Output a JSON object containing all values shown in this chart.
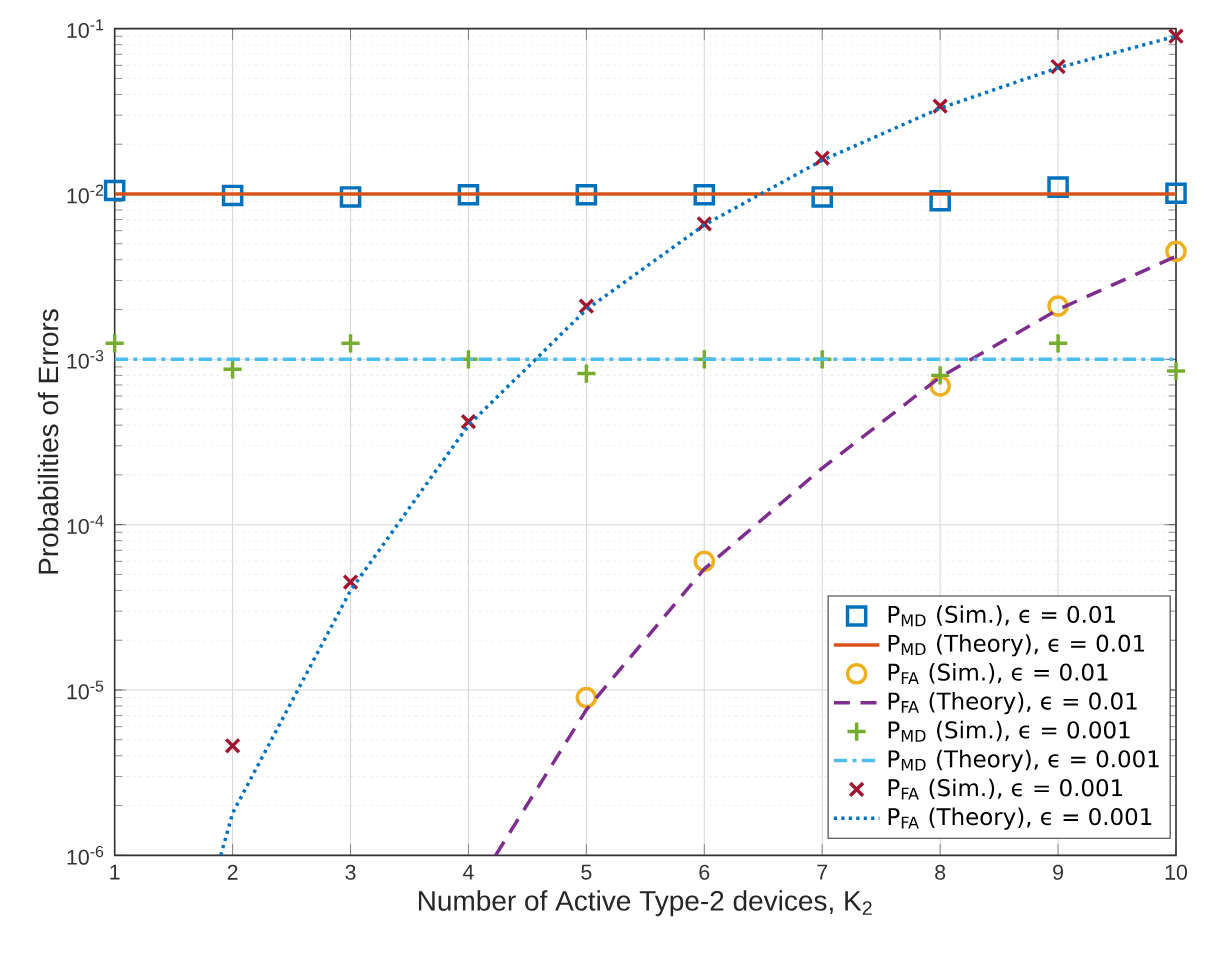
{
  "chart_data": {
    "type": "line",
    "xlabel": "Number of Active Type-2 devices, K$_{2}$",
    "ylabel": "Probabilities of Errors",
    "xlim": [
      1,
      10
    ],
    "ylim": [
      1e-06,
      0.1
    ],
    "log": "y",
    "grid": true,
    "legend": "bottom right",
    "xticks": [
      1,
      2,
      3,
      4,
      5,
      6,
      7,
      8,
      9,
      10
    ],
    "yticks": [
      {
        "value": 1e-06,
        "label": "10$^{-6}$"
      },
      {
        "value": 1e-05,
        "label": "10$^{-5}$"
      },
      {
        "value": 0.0001,
        "label": "10$^{-4}$"
      },
      {
        "value": 0.001,
        "label": "10$^{-3}$"
      },
      {
        "value": 0.01,
        "label": "10$^{-2}$"
      },
      {
        "value": 0.1,
        "label": "10$^{-1}$"
      }
    ],
    "series": [
      {
        "name": "P$_{MD}$ (Sim.), ϵ = 0.01",
        "type": "scatter",
        "marker": "square",
        "color": "#0072bd",
        "x": [
          1,
          2,
          3,
          4,
          5,
          6,
          7,
          8,
          9,
          10
        ],
        "values": [
          0.0105,
          0.0098,
          0.0096,
          0.0099,
          0.0099,
          0.0099,
          0.0096,
          0.0091,
          0.011,
          0.0101
        ]
      },
      {
        "name": "P$_{MD}$ (Theory), ϵ = 0.01",
        "line_style": "solid",
        "color": "#d95319",
        "x": [
          1,
          10
        ],
        "values": [
          0.01,
          0.01
        ]
      },
      {
        "name": "P$_{FA}$ (Sim.), ϵ = 0.01",
        "type": "scatter",
        "marker": "circle",
        "color": "#edb120",
        "x": [
          5,
          6,
          7,
          8,
          9,
          10
        ],
        "values": [
          9e-06,
          6e-05,
          null,
          0.00069,
          0.0021,
          0.0045
        ]
      },
      {
        "name": "P$_{FA}$ (Theory), ϵ = 0.01",
        "line_style": "dashed",
        "color": "#7e2f8e",
        "x": [
          4.23,
          5,
          6,
          7,
          8,
          9,
          10
        ],
        "values": [
          1e-06,
          7.6e-06,
          5.4e-05,
          0.00022,
          0.00078,
          0.002,
          0.0042
        ]
      },
      {
        "name": "P$_{MD}$ (Sim.), ϵ = 0.001",
        "type": "scatter",
        "marker": "plus",
        "color": "#77ac30",
        "x": [
          1,
          2,
          3,
          4,
          5,
          6,
          7,
          8,
          9,
          10
        ],
        "values": [
          0.00125,
          0.00087,
          0.00125,
          0.001,
          0.00082,
          0.001,
          0.001,
          0.0008,
          0.00125,
          0.00085
        ]
      },
      {
        "name": "P$_{MD}$ (Theory), ϵ = 0.001",
        "line_style": "dashdot",
        "color": "#4dbeee",
        "x": [
          1,
          10
        ],
        "values": [
          0.001,
          0.001
        ]
      },
      {
        "name": "P$_{FA}$ (Sim.), ϵ = 0.001",
        "type": "scatter",
        "marker": "cross",
        "color": "#a2142f",
        "x": [
          2,
          3,
          4,
          5,
          6,
          7,
          8,
          9,
          10
        ],
        "values": [
          4.6e-06,
          4.5e-05,
          0.00042,
          0.0021,
          0.0066,
          0.0165,
          0.034,
          0.059,
          0.09
        ]
      },
      {
        "name": "P$_{FA}$ (Theory), ϵ = 0.001",
        "line_style": "dotted",
        "color": "#0072bd",
        "x": [
          1.9,
          2,
          3,
          4,
          5,
          6,
          7,
          8,
          9,
          10
        ],
        "values": [
          1e-06,
          1.8e-06,
          4e-05,
          0.0004,
          0.002,
          0.0065,
          0.016,
          0.033,
          0.058,
          0.09
        ]
      }
    ]
  }
}
